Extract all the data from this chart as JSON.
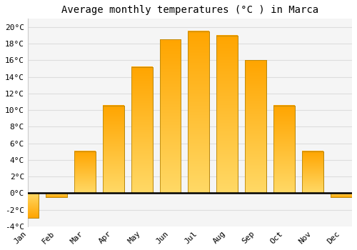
{
  "months": [
    "Jan",
    "Feb",
    "Mar",
    "Apr",
    "May",
    "Jun",
    "Jul",
    "Aug",
    "Sep",
    "Oct",
    "Nov",
    "Dec"
  ],
  "values": [
    -3.0,
    -0.5,
    5.0,
    10.5,
    15.2,
    18.5,
    19.5,
    19.0,
    16.0,
    10.5,
    5.0,
    -0.5
  ],
  "bar_color_top": "#FFD966",
  "bar_color_bottom": "#FFA500",
  "bar_edge_color": "#B8860B",
  "title": "Average monthly temperatures (°C ) in Marca",
  "ylim": [
    -4,
    21
  ],
  "yticks": [
    -4,
    -2,
    0,
    2,
    4,
    6,
    8,
    10,
    12,
    14,
    16,
    18,
    20
  ],
  "background_color": "#ffffff",
  "plot_bg_color": "#f5f5f5",
  "grid_color": "#dddddd",
  "title_fontsize": 10,
  "tick_fontsize": 8,
  "zero_line_color": "#000000",
  "bar_width": 0.75
}
